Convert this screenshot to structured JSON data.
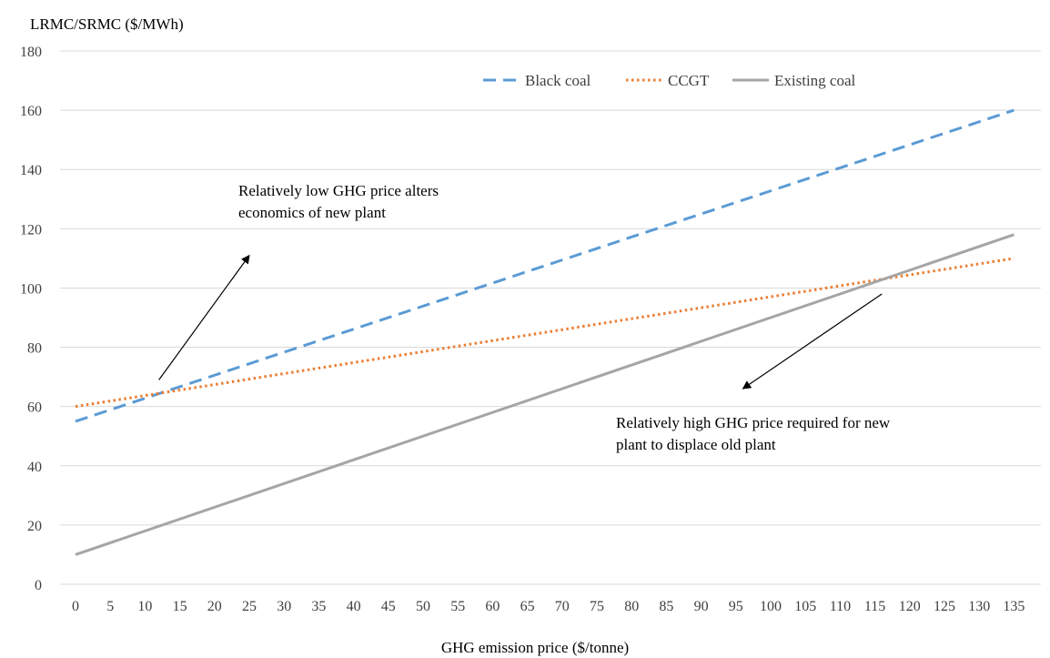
{
  "chart_data": {
    "type": "line",
    "title": "",
    "ylabel": "LRMC/SRMC ($/MWh)",
    "xlabel": "GHG emission price ($/tonne)",
    "ylim": [
      0,
      180
    ],
    "yticks": [
      0,
      20,
      40,
      60,
      80,
      100,
      120,
      140,
      160,
      180
    ],
    "x": [
      0,
      5,
      10,
      15,
      20,
      25,
      30,
      35,
      40,
      45,
      50,
      55,
      60,
      65,
      70,
      75,
      80,
      85,
      90,
      95,
      100,
      105,
      110,
      115,
      120,
      125,
      130,
      135
    ],
    "grid": "horizontal",
    "legend_position": "top-right",
    "series": [
      {
        "name": "Black coal",
        "style": "dashed",
        "color": "#5b9bd5",
        "start": 55,
        "end": 160
      },
      {
        "name": "CCGT",
        "style": "dotted",
        "color": "#ed7d31",
        "start": 60,
        "end": 110
      },
      {
        "name": "Existing coal",
        "style": "solid",
        "color": "#a5a5a5",
        "start": 10,
        "end": 118
      }
    ],
    "annotations": [
      {
        "lines": [
          "Relatively  low GHG price alters",
          "economics of new plant"
        ],
        "arrow_from": [
          12,
          69
        ],
        "arrow_to": [
          25,
          111
        ]
      },
      {
        "lines": [
          "Relatively  high GHG price required for new",
          "plant to displace old plant"
        ],
        "arrow_from": [
          116,
          98
        ],
        "arrow_to": [
          96,
          66
        ]
      }
    ]
  }
}
